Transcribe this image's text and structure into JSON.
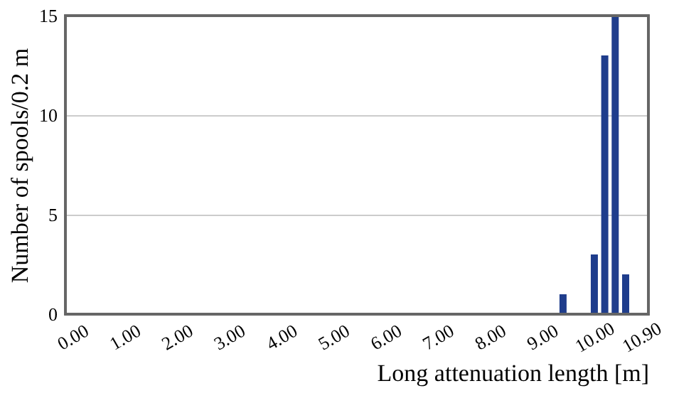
{
  "chart_data": {
    "type": "histogram",
    "xlabel": "Long attenuation length [m]",
    "ylabel": "Number of spools/0.2 m",
    "bins": [
      9.3,
      9.5,
      9.7,
      9.9,
      10.1,
      10.3,
      10.5,
      10.7
    ],
    "values": [
      1,
      0,
      0,
      3,
      13,
      15,
      2
    ],
    "color": "#1f3d8c",
    "xlim": [
      0,
      10.9
    ],
    "xticks": [
      {
        "value": 0,
        "label": "0.00"
      },
      {
        "value": 1,
        "label": "1.00"
      },
      {
        "value": 2,
        "label": "2.00"
      },
      {
        "value": 3,
        "label": "3.00"
      },
      {
        "value": 4,
        "label": "4.00"
      },
      {
        "value": 5,
        "label": "5.00"
      },
      {
        "value": 6,
        "label": "6.00"
      },
      {
        "value": 7,
        "label": "7.00"
      },
      {
        "value": 8,
        "label": "8.00"
      },
      {
        "value": 9,
        "label": "9.00"
      },
      {
        "value": 10,
        "label": "10.00"
      },
      {
        "value": 10.9,
        "label": "10.90"
      }
    ],
    "ylim": [
      0,
      15
    ],
    "yticks": [
      0,
      5,
      10,
      15
    ],
    "grid": "y"
  }
}
